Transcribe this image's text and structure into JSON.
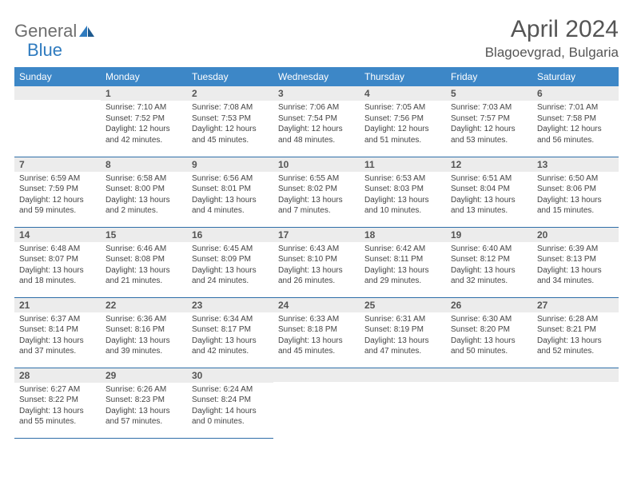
{
  "logo": {
    "text1": "General",
    "text2": "Blue"
  },
  "title": "April 2024",
  "location": "Blagoevgrad, Bulgaria",
  "weekday_headers": [
    "Sunday",
    "Monday",
    "Tuesday",
    "Wednesday",
    "Thursday",
    "Friday",
    "Saturday"
  ],
  "colors": {
    "header_bg": "#3d87c7",
    "header_text": "#ffffff",
    "daynum_bg": "#ececec",
    "daynum_text": "#555555",
    "cell_text": "#444444",
    "border": "#2f6ea8",
    "logo_gray": "#6e6e6e",
    "logo_blue": "#2f7bbf",
    "title_color": "#555555"
  },
  "layout": {
    "first_weekday_index": 1,
    "days_in_month": 30,
    "weeks": 5
  },
  "days": {
    "1": {
      "sunrise": "7:10 AM",
      "sunset": "7:52 PM",
      "daylight": "12 hours and 42 minutes."
    },
    "2": {
      "sunrise": "7:08 AM",
      "sunset": "7:53 PM",
      "daylight": "12 hours and 45 minutes."
    },
    "3": {
      "sunrise": "7:06 AM",
      "sunset": "7:54 PM",
      "daylight": "12 hours and 48 minutes."
    },
    "4": {
      "sunrise": "7:05 AM",
      "sunset": "7:56 PM",
      "daylight": "12 hours and 51 minutes."
    },
    "5": {
      "sunrise": "7:03 AM",
      "sunset": "7:57 PM",
      "daylight": "12 hours and 53 minutes."
    },
    "6": {
      "sunrise": "7:01 AM",
      "sunset": "7:58 PM",
      "daylight": "12 hours and 56 minutes."
    },
    "7": {
      "sunrise": "6:59 AM",
      "sunset": "7:59 PM",
      "daylight": "12 hours and 59 minutes."
    },
    "8": {
      "sunrise": "6:58 AM",
      "sunset": "8:00 PM",
      "daylight": "13 hours and 2 minutes."
    },
    "9": {
      "sunrise": "6:56 AM",
      "sunset": "8:01 PM",
      "daylight": "13 hours and 4 minutes."
    },
    "10": {
      "sunrise": "6:55 AM",
      "sunset": "8:02 PM",
      "daylight": "13 hours and 7 minutes."
    },
    "11": {
      "sunrise": "6:53 AM",
      "sunset": "8:03 PM",
      "daylight": "13 hours and 10 minutes."
    },
    "12": {
      "sunrise": "6:51 AM",
      "sunset": "8:04 PM",
      "daylight": "13 hours and 13 minutes."
    },
    "13": {
      "sunrise": "6:50 AM",
      "sunset": "8:06 PM",
      "daylight": "13 hours and 15 minutes."
    },
    "14": {
      "sunrise": "6:48 AM",
      "sunset": "8:07 PM",
      "daylight": "13 hours and 18 minutes."
    },
    "15": {
      "sunrise": "6:46 AM",
      "sunset": "8:08 PM",
      "daylight": "13 hours and 21 minutes."
    },
    "16": {
      "sunrise": "6:45 AM",
      "sunset": "8:09 PM",
      "daylight": "13 hours and 24 minutes."
    },
    "17": {
      "sunrise": "6:43 AM",
      "sunset": "8:10 PM",
      "daylight": "13 hours and 26 minutes."
    },
    "18": {
      "sunrise": "6:42 AM",
      "sunset": "8:11 PM",
      "daylight": "13 hours and 29 minutes."
    },
    "19": {
      "sunrise": "6:40 AM",
      "sunset": "8:12 PM",
      "daylight": "13 hours and 32 minutes."
    },
    "20": {
      "sunrise": "6:39 AM",
      "sunset": "8:13 PM",
      "daylight": "13 hours and 34 minutes."
    },
    "21": {
      "sunrise": "6:37 AM",
      "sunset": "8:14 PM",
      "daylight": "13 hours and 37 minutes."
    },
    "22": {
      "sunrise": "6:36 AM",
      "sunset": "8:16 PM",
      "daylight": "13 hours and 39 minutes."
    },
    "23": {
      "sunrise": "6:34 AM",
      "sunset": "8:17 PM",
      "daylight": "13 hours and 42 minutes."
    },
    "24": {
      "sunrise": "6:33 AM",
      "sunset": "8:18 PM",
      "daylight": "13 hours and 45 minutes."
    },
    "25": {
      "sunrise": "6:31 AM",
      "sunset": "8:19 PM",
      "daylight": "13 hours and 47 minutes."
    },
    "26": {
      "sunrise": "6:30 AM",
      "sunset": "8:20 PM",
      "daylight": "13 hours and 50 minutes."
    },
    "27": {
      "sunrise": "6:28 AM",
      "sunset": "8:21 PM",
      "daylight": "13 hours and 52 minutes."
    },
    "28": {
      "sunrise": "6:27 AM",
      "sunset": "8:22 PM",
      "daylight": "13 hours and 55 minutes."
    },
    "29": {
      "sunrise": "6:26 AM",
      "sunset": "8:23 PM",
      "daylight": "13 hours and 57 minutes."
    },
    "30": {
      "sunrise": "6:24 AM",
      "sunset": "8:24 PM",
      "daylight": "14 hours and 0 minutes."
    }
  },
  "labels": {
    "sunrise_prefix": "Sunrise: ",
    "sunset_prefix": "Sunset: ",
    "daylight_prefix": "Daylight: "
  }
}
